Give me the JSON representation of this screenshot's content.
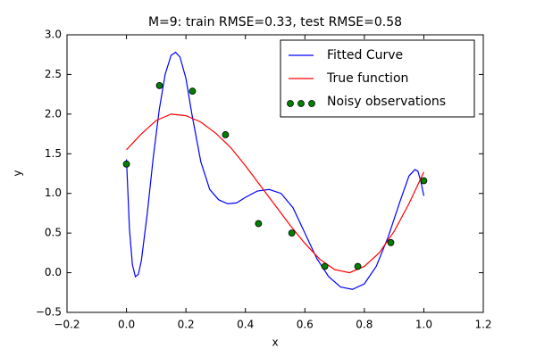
{
  "chart_data": {
    "type": "line",
    "title": "M=9: train RMSE=0.33, test RMSE=0.58",
    "x_label": "x",
    "y_label": "y",
    "xlim": [
      -0.2,
      1.2
    ],
    "ylim": [
      -0.5,
      3.0
    ],
    "xticks": [
      {
        "value": -0.2,
        "label": "−0.2"
      },
      {
        "value": 0,
        "label": "0.0"
      },
      0.2,
      0.4,
      0.6,
      0.8,
      {
        "value": 1,
        "label": "1.0"
      },
      1.2
    ],
    "yticks": [
      {
        "value": -0.5,
        "label": "−0.5"
      },
      {
        "value": 0,
        "label": "0.0"
      },
      0.5,
      {
        "value": 1,
        "label": "1.0"
      },
      1.5,
      {
        "value": 2,
        "label": "2.0"
      },
      2.5,
      {
        "value": 3,
        "label": "3.0"
      }
    ],
    "legend": "upper right",
    "series": [
      {
        "name": "Fitted Curve",
        "type": "line",
        "color": "#0000ff",
        "x": [
          0,
          0.005,
          0.01,
          0.02,
          0.03,
          0.04,
          0.05,
          0.07,
          0.09,
          0.11,
          0.13,
          0.15,
          0.165,
          0.18,
          0.2,
          0.22,
          0.25,
          0.28,
          0.31,
          0.34,
          0.37,
          0.4,
          0.44,
          0.48,
          0.52,
          0.56,
          0.6,
          0.64,
          0.68,
          0.72,
          0.76,
          0.8,
          0.84,
          0.88,
          0.92,
          0.95,
          0.97,
          0.98,
          0.99,
          1.0
        ],
        "values": [
          1.43,
          1.0,
          0.55,
          0.1,
          -0.05,
          -0.02,
          0.15,
          0.75,
          1.45,
          2.05,
          2.5,
          2.74,
          2.78,
          2.72,
          2.45,
          2.0,
          1.4,
          1.05,
          0.92,
          0.87,
          0.88,
          0.95,
          1.03,
          1.05,
          1.0,
          0.82,
          0.5,
          0.18,
          -0.05,
          -0.18,
          -0.21,
          -0.14,
          0.08,
          0.45,
          0.9,
          1.22,
          1.3,
          1.28,
          1.15,
          0.97
        ]
      },
      {
        "name": "True function",
        "type": "line",
        "color": "#ff0000",
        "x": [
          0,
          0.05,
          0.1,
          0.15,
          0.2,
          0.25,
          0.3,
          0.35,
          0.4,
          0.45,
          0.5,
          0.55,
          0.6,
          0.65,
          0.7,
          0.75,
          0.8,
          0.85,
          0.9,
          0.95,
          1.0
        ],
        "values": [
          1.55,
          1.75,
          1.92,
          2.0,
          1.98,
          1.9,
          1.76,
          1.58,
          1.35,
          1.1,
          0.85,
          0.6,
          0.37,
          0.17,
          0.04,
          0.0,
          0.08,
          0.25,
          0.52,
          0.87,
          1.27
        ]
      },
      {
        "name": "Noisy observations",
        "type": "scatter",
        "color": "#008000",
        "x": [
          0,
          0.111,
          0.222,
          0.333,
          0.444,
          0.556,
          0.667,
          0.778,
          0.889,
          1.0
        ],
        "values": [
          1.37,
          2.36,
          2.29,
          1.74,
          0.62,
          0.5,
          0.08,
          0.08,
          0.38,
          1.16
        ]
      }
    ]
  }
}
